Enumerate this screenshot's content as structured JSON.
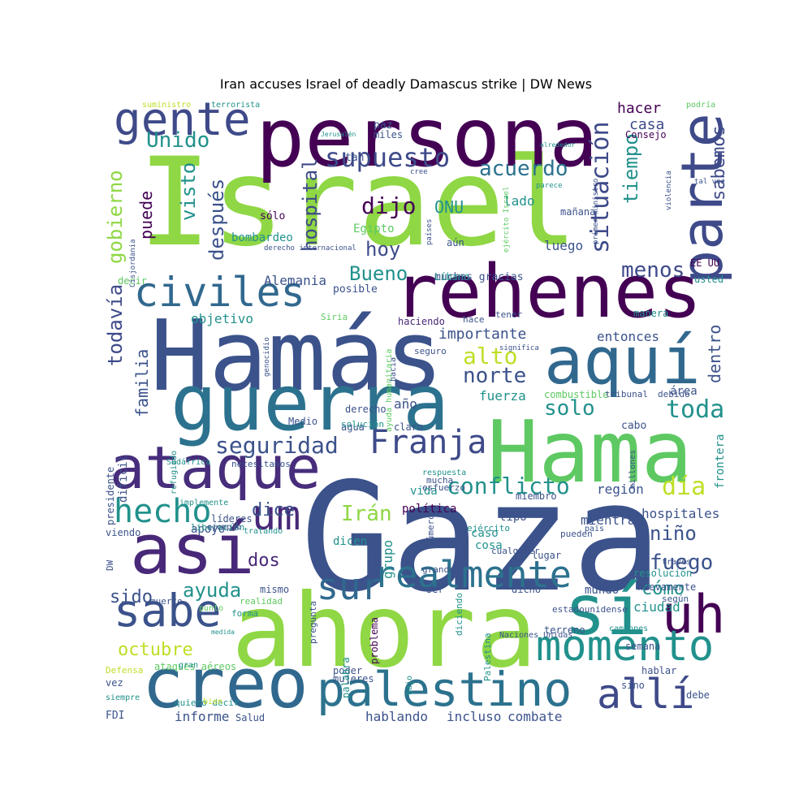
{
  "title": "Iran accuses Israel of deadly Damascus strike | DW News",
  "words": [
    {
      "text": "Israel",
      "color": "#8fd744"
    },
    {
      "text": "Gaza",
      "color": "#3b528b"
    },
    {
      "text": "persona",
      "color": "#440154"
    },
    {
      "text": "Hamás",
      "color": "#3b528b"
    },
    {
      "text": "Hama",
      "color": "#5ec962"
    },
    {
      "text": "ahora",
      "color": "#8fd744"
    },
    {
      "text": "guerra",
      "color": "#2c728e"
    },
    {
      "text": "rehenes",
      "color": "#440154"
    },
    {
      "text": "creo",
      "color": "#31688e"
    },
    {
      "text": "así",
      "color": "#482878"
    },
    {
      "text": "aquí",
      "color": "#31688e"
    },
    {
      "text": "sí",
      "color": "#21918c"
    },
    {
      "text": "uh",
      "color": "#440154"
    },
    {
      "text": "ataque",
      "color": "#472d7b"
    },
    {
      "text": "parte",
      "color": "#3e4a89"
    },
    {
      "text": "palestino",
      "color": "#2c728e"
    },
    {
      "text": "civiles",
      "color": "#31688e"
    },
    {
      "text": "gente",
      "color": "#3e4a89"
    },
    {
      "text": "sabe",
      "color": "#3b528b"
    },
    {
      "text": "momento",
      "color": "#21918c"
    },
    {
      "text": "allí",
      "color": "#3e4a89"
    },
    {
      "text": "um",
      "color": "#482878"
    },
    {
      "text": "sur",
      "color": "#31688e"
    },
    {
      "text": "realmente",
      "color": "#2c728e"
    },
    {
      "text": "Franja",
      "color": "#3e4a89"
    },
    {
      "text": "hecho",
      "color": "#21918c"
    },
    {
      "text": "situación",
      "color": "#3e4a89"
    },
    {
      "text": "supuesto",
      "color": "#3e4a89"
    },
    {
      "text": "seguridad",
      "color": "#3b528b"
    },
    {
      "text": "conflicto",
      "color": "#21918c"
    },
    {
      "text": "Unido",
      "color": "#21918c"
    },
    {
      "text": "acuerdo",
      "color": "#2c728e"
    },
    {
      "text": "día",
      "color": "#bddf26"
    },
    {
      "text": "toda",
      "color": "#21918c"
    },
    {
      "text": "solo",
      "color": "#21918c"
    },
    {
      "text": "alto",
      "color": "#bddf26"
    },
    {
      "text": "norte",
      "color": "#3b528b"
    },
    {
      "text": "menos",
      "color": "#3e4a89"
    },
    {
      "text": "dijo",
      "color": "#440154"
    },
    {
      "text": "hoy",
      "color": "#3e4a89"
    },
    {
      "text": "Bueno",
      "color": "#21918c"
    },
    {
      "text": "hospital",
      "color": "#3e4a89"
    },
    {
      "text": "gobierno",
      "color": "#8fd744"
    },
    {
      "text": "visto",
      "color": "#21918c"
    },
    {
      "text": "después",
      "color": "#3b528b"
    },
    {
      "text": "puede",
      "color": "#440154"
    },
    {
      "text": "tiempo",
      "color": "#21918c"
    },
    {
      "text": "sabemos",
      "color": "#3e4a89"
    },
    {
      "text": "todavía",
      "color": "#3e4a89"
    },
    {
      "text": "familia",
      "color": "#3b528b"
    },
    {
      "text": "Irán",
      "color": "#8fd744"
    },
    {
      "text": "dice",
      "color": "#3b528b"
    },
    {
      "text": "fuego",
      "color": "#3b528b"
    },
    {
      "text": "niño",
      "color": "#3b528b"
    },
    {
      "text": "ayuda",
      "color": "#21918c"
    },
    {
      "text": "cómo",
      "color": "#21918c"
    },
    {
      "text": "sido",
      "color": "#3b528b"
    },
    {
      "text": "dos",
      "color": "#482878"
    },
    {
      "text": "octubre",
      "color": "#bddf26"
    },
    {
      "text": "dentro",
      "color": "#3b528b"
    },
    {
      "text": "hacer",
      "color": "#440154"
    },
    {
      "text": "casa",
      "color": "#3e4a89"
    },
    {
      "text": "importante",
      "color": "#3b528b"
    },
    {
      "text": "entonces",
      "color": "#3b528b"
    },
    {
      "text": "objetivo",
      "color": "#21918c"
    },
    {
      "text": "fuerza",
      "color": "#21918c"
    },
    {
      "text": "año",
      "color": "#3b528b"
    },
    {
      "text": "región",
      "color": "#3b528b"
    },
    {
      "text": "hospitales",
      "color": "#3b528b"
    },
    {
      "text": "ONU",
      "color": "#21918c"
    },
    {
      "text": "Egipto",
      "color": "#5ec962"
    },
    {
      "text": "luego",
      "color": "#3b528b"
    },
    {
      "text": "muchas gracias",
      "color": "#3b528b"
    },
    {
      "text": "área",
      "color": "#3b528b"
    },
    {
      "text": "frontera",
      "color": "#21918c"
    },
    {
      "text": "mientras",
      "color": "#3b528b"
    },
    {
      "text": "grupo",
      "color": "#21918c"
    },
    {
      "text": "caso",
      "color": "#21918c"
    },
    {
      "text": "cosa",
      "color": "#21918c"
    },
    {
      "text": "apoyo",
      "color": "#3b528b"
    },
    {
      "text": "informe",
      "color": "#3b528b"
    },
    {
      "text": "combate",
      "color": "#3b528b"
    },
    {
      "text": "incluso",
      "color": "#3b528b"
    },
    {
      "text": "hablando",
      "color": "#3b528b"
    },
    {
      "text": "ciudad",
      "color": "#21918c"
    },
    {
      "text": "mundo",
      "color": "#3b528b"
    },
    {
      "text": "Alemania",
      "color": "#3b528b"
    },
    {
      "text": "posible",
      "color": "#3b528b"
    },
    {
      "text": "bombardeo",
      "color": "#21918c"
    },
    {
      "text": "sólo",
      "color": "#440154"
    },
    {
      "text": "decir",
      "color": "#5ec962"
    },
    {
      "text": "haciendo",
      "color": "#482878"
    },
    {
      "text": "Siria",
      "color": "#5ec962"
    },
    {
      "text": "tipo",
      "color": "#3b528b"
    },
    {
      "text": "política",
      "color": "#440154"
    },
    {
      "text": "vida",
      "color": "#21918c"
    },
    {
      "text": "dicen",
      "color": "#21918c"
    },
    {
      "text": "derecho",
      "color": "#3b528b"
    },
    {
      "text": "agua",
      "color": "#3b528b"
    },
    {
      "text": "claro",
      "color": "#3b528b"
    },
    {
      "text": "Medio",
      "color": "#3b528b"
    },
    {
      "text": "cabo",
      "color": "#3b528b"
    },
    {
      "text": "miembro",
      "color": "#3b528b"
    },
    {
      "text": "combustible",
      "color": "#5ec962"
    },
    {
      "text": "tan",
      "color": "#3b528b"
    },
    {
      "text": "lado",
      "color": "#21918c"
    },
    {
      "text": "Consejo",
      "color": "#440154"
    },
    {
      "text": "paz",
      "color": "#3b528b"
    },
    {
      "text": "miles",
      "color": "#3b528b"
    },
    {
      "text": "aún",
      "color": "#3b528b"
    },
    {
      "text": "Líbano",
      "color": "#21918c"
    },
    {
      "text": "mañana",
      "color": "#3b528b"
    },
    {
      "text": "EE UU",
      "color": "#440154"
    },
    {
      "text": "usted",
      "color": "#21918c"
    },
    {
      "text": "manera",
      "color": "#21918c"
    },
    {
      "text": "hace",
      "color": "#3b528b"
    },
    {
      "text": "tener",
      "color": "#3b528b"
    },
    {
      "text": "seguro",
      "color": "#3b528b"
    },
    {
      "text": "debido",
      "color": "#3b528b"
    },
    {
      "text": "tribunal",
      "color": "#3b528b"
    },
    {
      "text": "presidente",
      "color": "#3b528b"
    },
    {
      "text": "difícil",
      "color": "#3b528b"
    },
    {
      "text": "refugiado",
      "color": "#21918c"
    },
    {
      "text": "Sudáfrica",
      "color": "#21918c"
    },
    {
      "text": "necesitamos",
      "color": "#3b528b"
    },
    {
      "text": "mucha",
      "color": "#3b528b"
    },
    {
      "text": "respuesta",
      "color": "#21918c"
    },
    {
      "text": "solución",
      "color": "#21918c"
    },
    {
      "text": "esfuerzo",
      "color": "#3b528b"
    },
    {
      "text": "millones",
      "color": "#3b528b"
    },
    {
      "text": "simplemente",
      "color": "#21918c"
    },
    {
      "text": "líderes",
      "color": "#3b528b"
    },
    {
      "text": "tratando",
      "color": "#21918c"
    },
    {
      "text": "liberación",
      "color": "#21918c"
    },
    {
      "text": "número",
      "color": "#3b528b"
    },
    {
      "text": "ejército",
      "color": "#21918c"
    },
    {
      "text": "país",
      "color": "#3b528b"
    },
    {
      "text": "grande",
      "color": "#3b528b"
    },
    {
      "text": "cualquier",
      "color": "#3b528b"
    },
    {
      "text": "lugar",
      "color": "#3b528b"
    },
    {
      "text": "pueden",
      "color": "#3b528b"
    },
    {
      "text": "través",
      "color": "#3b528b"
    },
    {
      "text": "resolución",
      "color": "#21918c"
    },
    {
      "text": "nuevamente",
      "color": "#3b528b"
    },
    {
      "text": "según",
      "color": "#3b528b"
    },
    {
      "text": "dicho",
      "color": "#3b528b"
    },
    {
      "text": "ser",
      "color": "#3b528b"
    },
    {
      "text": "mismo",
      "color": "#3b528b"
    },
    {
      "text": "muerto",
      "color": "#3b528b"
    },
    {
      "text": "realidad",
      "color": "#5ec962"
    },
    {
      "text": "punto",
      "color": "#5ec962"
    },
    {
      "text": "forma",
      "color": "#21918c"
    },
    {
      "text": "viendo",
      "color": "#3b528b"
    },
    {
      "text": "DW",
      "color": "#3b528b"
    },
    {
      "text": "estadounidense",
      "color": "#3b528b"
    },
    {
      "text": "terreno",
      "color": "#3b528b"
    },
    {
      "text": "camiones",
      "color": "#21918c"
    },
    {
      "text": "semana",
      "color": "#3b528b"
    },
    {
      "text": "hablar",
      "color": "#3b528b"
    },
    {
      "text": "Naciones Unidas",
      "color": "#3b528b"
    },
    {
      "text": "poder",
      "color": "#3b528b"
    },
    {
      "text": "bajo",
      "color": "#21918c"
    },
    {
      "text": "mujeres",
      "color": "#3b528b"
    },
    {
      "text": "sino",
      "color": "#3b528b"
    },
    {
      "text": "debe",
      "color": "#3b528b"
    },
    {
      "text": "quiero decir",
      "color": "#21918c"
    },
    {
      "text": "bien",
      "color": "#bddf26"
    },
    {
      "text": "Salud",
      "color": "#3b528b"
    },
    {
      "text": "FDI",
      "color": "#3b528b"
    },
    {
      "text": "siempre",
      "color": "#21918c"
    },
    {
      "text": "vez",
      "color": "#3b528b"
    },
    {
      "text": "Defensa",
      "color": "#bddf26"
    },
    {
      "text": "ataques aéreos",
      "color": "#5ec962"
    },
    {
      "text": "gran",
      "color": "#21918c"
    },
    {
      "text": "medida",
      "color": "#21918c"
    },
    {
      "text": "suministro",
      "color": "#bddf26"
    },
    {
      "text": "terrorista",
      "color": "#21918c"
    },
    {
      "text": "podría",
      "color": "#5ec962"
    },
    {
      "text": "Jerusalén",
      "color": "#21918c"
    },
    {
      "text": "alrededor",
      "color": "#21918c"
    },
    {
      "text": "cree",
      "color": "#3b528b"
    },
    {
      "text": "parece",
      "color": "#21918c"
    },
    {
      "text": "tal vez",
      "color": "#3b528b"
    },
    {
      "text": "derecho internacional",
      "color": "#3b528b"
    },
    {
      "text": "Cisjordania",
      "color": "#3b528b"
    },
    {
      "text": "ejército Israel",
      "color": "#5ec962"
    },
    {
      "text": "países",
      "color": "#3b528b"
    },
    {
      "text": "primer ministro",
      "color": "#3b528b"
    },
    {
      "text": "violencia",
      "color": "#3b528b"
    },
    {
      "text": "significa",
      "color": "#3b528b"
    },
    {
      "text": "hacia",
      "color": "#3b528b"
    },
    {
      "text": "ayuda humanitaria",
      "color": "#5ec962"
    },
    {
      "text": "genocidio",
      "color": "#3b528b"
    },
    {
      "text": "problema",
      "color": "#440154"
    },
    {
      "text": "palabra",
      "color": "#21918c"
    },
    {
      "text": "pregunta",
      "color": "#3b528b"
    },
    {
      "text": "diciendo",
      "color": "#21918c"
    },
    {
      "text": "Palestina",
      "color": "#21918c"
    },
    {
      "text": "ejemplo",
      "color": "#3b528b"
    }
  ]
}
